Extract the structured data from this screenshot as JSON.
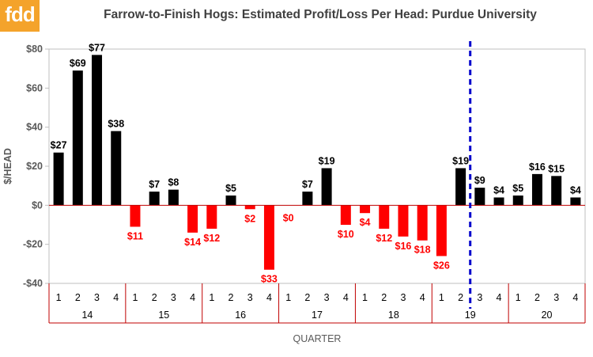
{
  "logo": {
    "text": "fdd"
  },
  "chart_data": {
    "type": "bar",
    "title": "Farrow-to-Finish Hogs: Estimated Profit/Loss Per Head: Purdue University",
    "ylabel": "$/HEAD",
    "xlabel": "QUARTER",
    "ylim": [
      -40,
      80
    ],
    "yticks": [
      80,
      60,
      40,
      20,
      0,
      -20,
      -40
    ],
    "ytick_labels": [
      "$80",
      "$60",
      "$40",
      "$20",
      "$0",
      "-$20",
      "-$40"
    ],
    "grid": false,
    "categories": [
      "1",
      "2",
      "3",
      "4",
      "1",
      "2",
      "3",
      "4",
      "1",
      "2",
      "3",
      "4",
      "1",
      "2",
      "3",
      "4",
      "1",
      "2",
      "3",
      "4",
      "1",
      "2",
      "3",
      "4",
      "1",
      "2",
      "3",
      "4"
    ],
    "years": [
      {
        "label": "14",
        "quarters": 4
      },
      {
        "label": "15",
        "quarters": 4
      },
      {
        "label": "16",
        "quarters": 4
      },
      {
        "label": "17",
        "quarters": 4
      },
      {
        "label": "18",
        "quarters": 4
      },
      {
        "label": "19",
        "quarters": 4
      },
      {
        "label": "20",
        "quarters": 4
      }
    ],
    "values": [
      27,
      69,
      77,
      38,
      -11,
      7,
      8,
      -14,
      -12,
      5,
      -2,
      -33,
      0,
      7,
      19,
      -10,
      -4,
      -12,
      -16,
      -18,
      -26,
      19,
      9,
      4,
      5,
      16,
      15,
      4
    ],
    "data_labels": [
      "$27",
      "$69",
      "$77",
      "$38",
      "$11",
      "$7",
      "$8",
      "$14",
      "$12",
      "$5",
      "$2",
      "$33",
      "$0",
      "$7",
      "$19",
      "$10",
      "$4",
      "$12",
      "$16",
      "$18",
      "$26",
      "$19",
      "$9",
      "$4",
      "$5",
      "$16",
      "$15",
      "$4"
    ],
    "colors": {
      "positive": "#000000",
      "negative": "#ff0000",
      "zero_line": "#c00000",
      "axis_text": "#595959",
      "divider": "#0000cc"
    },
    "divider_after_index": 21
  }
}
